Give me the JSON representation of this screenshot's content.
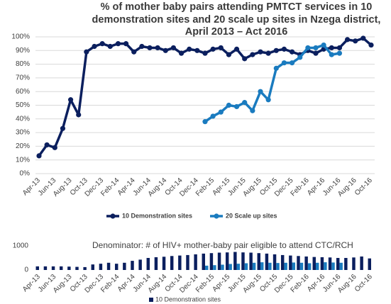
{
  "chart_data": [
    {
      "type": "line",
      "title": [
        "% of mother baby pairs attending PMTCT services in 10",
        "demonstration sites and 20 scale up sites in Nzega district,",
        "April 2013 – Act 2016"
      ],
      "categories": [
        "Apr-13",
        null,
        "Jun-13",
        null,
        "Aug-13",
        null,
        "Oct-13",
        null,
        "Dec-13",
        null,
        "Feb-14",
        null,
        "Apr-14",
        null,
        "Jun-14",
        null,
        "Aug-14",
        null,
        "Oct-14",
        null,
        "Dec-14",
        null,
        "Feb-15",
        null,
        "Apr-15",
        null,
        "Jun-15",
        null,
        "Aug-15",
        null,
        "Oct-15",
        null,
        "Dec-15",
        null,
        "Feb-16",
        null,
        "Apr-16",
        null,
        "Jun-16",
        null,
        "Aug-16",
        null,
        "Oct-16"
      ],
      "series": [
        {
          "name": "10 Demonstration sites",
          "color": "#0b1f5e",
          "values": [
            13,
            21,
            19,
            33,
            54,
            43,
            89,
            93,
            95,
            93,
            95,
            95,
            89,
            93,
            92,
            92,
            90,
            92,
            88,
            91,
            90,
            88,
            91,
            92,
            87,
            91,
            84,
            87,
            89,
            88,
            90,
            91,
            89,
            87,
            90,
            88,
            91,
            92,
            92,
            98,
            97,
            99,
            94
          ]
        },
        {
          "name": "20 Scale up sites",
          "color": "#1a7bbf",
          "values": [
            null,
            null,
            null,
            null,
            null,
            null,
            null,
            null,
            null,
            null,
            null,
            null,
            null,
            null,
            null,
            null,
            null,
            null,
            null,
            null,
            null,
            38,
            42,
            45,
            50,
            49,
            52,
            46,
            60,
            54,
            77,
            81,
            81,
            85,
            92,
            92,
            94,
            87,
            88,
            null,
            null,
            null,
            null
          ]
        }
      ],
      "ylim": [
        0,
        100
      ],
      "yticks": [
        {
          "value": 0,
          "label": "0%"
        },
        {
          "value": 10,
          "label": "10%"
        },
        {
          "value": 20,
          "label": "20%"
        },
        {
          "value": 30,
          "label": "30%"
        },
        {
          "value": 40,
          "label": "40%"
        },
        {
          "value": 50,
          "label": "50%"
        },
        {
          "value": 60,
          "label": "60%"
        },
        {
          "value": 70,
          "label": "70%"
        },
        {
          "value": 80,
          "label": "80%"
        },
        {
          "value": 90,
          "label": "90%"
        },
        {
          "value": 100,
          "label": "100%"
        }
      ],
      "grid": true,
      "legend": "bottom"
    },
    {
      "type": "bar",
      "title": "Denominator: # of HIV+ mother-baby pair eligible to attend CTC/RCH",
      "categories": [
        "Apr-13",
        null,
        "Jun-13",
        null,
        "Aug-13",
        null,
        "Oct-13",
        null,
        "Dec-13",
        null,
        "Feb-14",
        null,
        "Apr-14",
        null,
        "Jun-14",
        null,
        "Aug-14",
        null,
        "Oct-14",
        null,
        "Dec-14",
        null,
        "Feb-15",
        null,
        "Apr-15",
        null,
        "Jun-15",
        null,
        "Aug-15",
        null,
        "Oct-15",
        null,
        "Dec-15",
        null,
        "Feb-16",
        null,
        "Apr-16",
        null,
        "Jun-16",
        null,
        "Aug-16",
        null,
        "Oct-16"
      ],
      "series": [
        {
          "name": "10 Demonstration sites",
          "color": "#0b1f5e",
          "values": [
            150,
            150,
            150,
            150,
            140,
            130,
            120,
            230,
            260,
            300,
            260,
            300,
            380,
            430,
            500,
            530,
            550,
            580,
            600,
            620,
            650,
            680,
            700,
            720,
            730,
            750,
            730,
            720,
            700,
            680,
            650,
            620,
            600,
            580,
            560,
            540,
            530,
            520,
            500,
            500,
            520,
            560,
            480
          ]
        },
        {
          "color": "#1a7bbf",
          "values": [
            null,
            null,
            null,
            null,
            null,
            null,
            null,
            null,
            null,
            null,
            null,
            null,
            null,
            null,
            null,
            null,
            null,
            null,
            null,
            null,
            null,
            180,
            200,
            220,
            250,
            260,
            280,
            300,
            320,
            300,
            290,
            300,
            310,
            300,
            280,
            300,
            320,
            310,
            300,
            null,
            null,
            null,
            null
          ]
        }
      ],
      "ylim": [
        0,
        1000
      ],
      "yticks": [
        0,
        1000
      ],
      "grid": false,
      "legend": "bottom"
    }
  ]
}
